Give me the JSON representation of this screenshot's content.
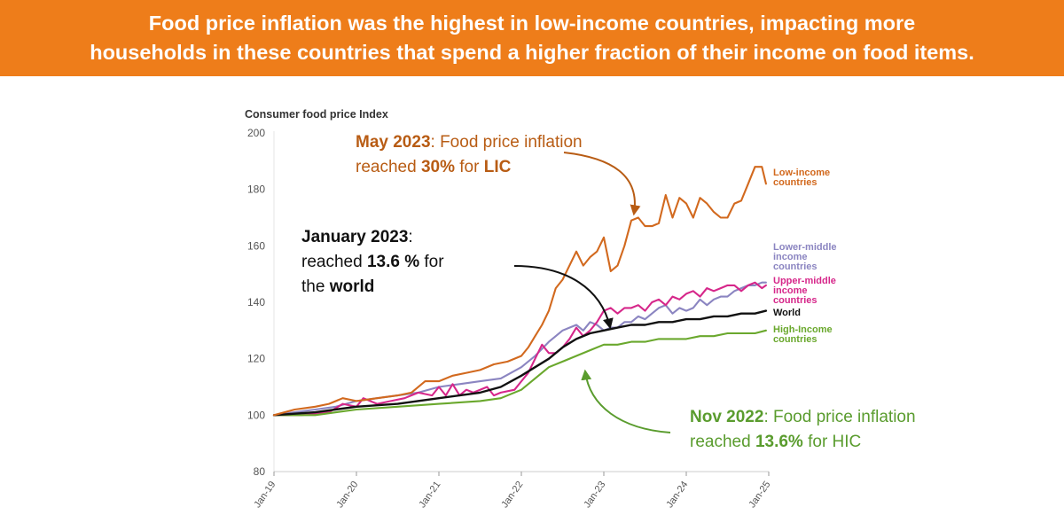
{
  "banner": {
    "line1": "Food price inflation was the highest in low-income countries, impacting more",
    "line2": "households in these countries that spend a higher fraction of their income on food items."
  },
  "colors": {
    "banner": "#ee7d1a",
    "low_income": "#d2691e",
    "lower_middle": "#8b85c1",
    "upper_middle": "#d6278a",
    "world": "#111111",
    "high_income": "#6aa82d",
    "ann_may": "#b85c14",
    "ann_nov": "#5a9c2e"
  },
  "annotations": {
    "may": {
      "date": "May 2023",
      "t1": ": Food price inflation",
      "t2": "reached ",
      "val": "30%",
      "t3": " for ",
      "grp": "LIC"
    },
    "jan": {
      "date": "January 2023",
      "t1": ":",
      "t2": "reached ",
      "val": "13.6 %",
      "t3": " for",
      "t4": "the ",
      "grp": "world"
    },
    "nov": {
      "date": "Nov 2022",
      "t1": ": Food price inflation",
      "t2": "reached ",
      "val": "13.6%",
      "t3": " for HIC"
    }
  },
  "chart_data": {
    "type": "line",
    "ylabel": "Consumer food price Index",
    "ylim": [
      80,
      200
    ],
    "yticks": [
      80,
      100,
      120,
      140,
      160,
      180,
      200
    ],
    "xticks": [
      "Jan-19",
      "Jan-20",
      "Jan-21",
      "Jan-22",
      "Jan-23",
      "Jan-24",
      "Jan-25"
    ],
    "xlim_months": [
      0,
      72
    ],
    "grid": false,
    "series": [
      {
        "key": "low_income",
        "name": "Low-income countries",
        "label_lines": [
          "Low-income",
          "countries"
        ],
        "points": [
          [
            0,
            100
          ],
          [
            3,
            102
          ],
          [
            6,
            103
          ],
          [
            8,
            104
          ],
          [
            10,
            106
          ],
          [
            12,
            105
          ],
          [
            15,
            106
          ],
          [
            18,
            107
          ],
          [
            20,
            108
          ],
          [
            22,
            112
          ],
          [
            24,
            112
          ],
          [
            26,
            114
          ],
          [
            28,
            115
          ],
          [
            30,
            116
          ],
          [
            32,
            118
          ],
          [
            34,
            119
          ],
          [
            36,
            121
          ],
          [
            37,
            124
          ],
          [
            38,
            128
          ],
          [
            39,
            132
          ],
          [
            40,
            137
          ],
          [
            41,
            145
          ],
          [
            42,
            148
          ],
          [
            44,
            158
          ],
          [
            45,
            153
          ],
          [
            46,
            156
          ],
          [
            47,
            158
          ],
          [
            48,
            163
          ],
          [
            49,
            151
          ],
          [
            50,
            153
          ],
          [
            51,
            160
          ],
          [
            52,
            169
          ],
          [
            53,
            170
          ],
          [
            54,
            167
          ],
          [
            55,
            167
          ],
          [
            56,
            168
          ],
          [
            57,
            178
          ],
          [
            58,
            170
          ],
          [
            59,
            177
          ],
          [
            60,
            175
          ],
          [
            61,
            170
          ],
          [
            62,
            177
          ],
          [
            63,
            175
          ],
          [
            64,
            172
          ],
          [
            65,
            170
          ],
          [
            66,
            170
          ],
          [
            67,
            175
          ],
          [
            68,
            176
          ],
          [
            69,
            182
          ],
          [
            70,
            188
          ],
          [
            71,
            188
          ],
          [
            71.6,
            182
          ]
        ]
      },
      {
        "key": "lower_middle",
        "name": "Lower-middle income countries",
        "label_lines": [
          "Lower-middle",
          "income",
          "countries"
        ],
        "points": [
          [
            0,
            100
          ],
          [
            3,
            101
          ],
          [
            6,
            102
          ],
          [
            9,
            103
          ],
          [
            12,
            105
          ],
          [
            15,
            106
          ],
          [
            18,
            107
          ],
          [
            21,
            108
          ],
          [
            24,
            110
          ],
          [
            27,
            111
          ],
          [
            30,
            112
          ],
          [
            33,
            113
          ],
          [
            36,
            117
          ],
          [
            38,
            121
          ],
          [
            40,
            126
          ],
          [
            42,
            130
          ],
          [
            43,
            131
          ],
          [
            44,
            132
          ],
          [
            45,
            130
          ],
          [
            46,
            133
          ],
          [
            47,
            132
          ],
          [
            48,
            130
          ],
          [
            49,
            131
          ],
          [
            50,
            131
          ],
          [
            51,
            133
          ],
          [
            52,
            133
          ],
          [
            53,
            135
          ],
          [
            54,
            134
          ],
          [
            55,
            136
          ],
          [
            56,
            138
          ],
          [
            57,
            139
          ],
          [
            58,
            136
          ],
          [
            59,
            138
          ],
          [
            60,
            137
          ],
          [
            61,
            138
          ],
          [
            62,
            141
          ],
          [
            63,
            139
          ],
          [
            64,
            141
          ],
          [
            65,
            142
          ],
          [
            66,
            142
          ],
          [
            67,
            144
          ],
          [
            68,
            145
          ],
          [
            69,
            146
          ],
          [
            70,
            146
          ],
          [
            71,
            147
          ],
          [
            71.6,
            147
          ]
        ]
      },
      {
        "key": "upper_middle",
        "name": "Upper-middle income countries",
        "label_lines": [
          "Upper-middle",
          "income",
          "countries"
        ],
        "points": [
          [
            0,
            100
          ],
          [
            4,
            100
          ],
          [
            8,
            101
          ],
          [
            10,
            104
          ],
          [
            12,
            103
          ],
          [
            13,
            106
          ],
          [
            15,
            104
          ],
          [
            17,
            105
          ],
          [
            19,
            106
          ],
          [
            21,
            108
          ],
          [
            23,
            107
          ],
          [
            24,
            110
          ],
          [
            25,
            107
          ],
          [
            26,
            111
          ],
          [
            27,
            107
          ],
          [
            28,
            109
          ],
          [
            29,
            108
          ],
          [
            31,
            110
          ],
          [
            32,
            107
          ],
          [
            33,
            108
          ],
          [
            35,
            109
          ],
          [
            36,
            112
          ],
          [
            37,
            115
          ],
          [
            38,
            120
          ],
          [
            39,
            125
          ],
          [
            40,
            122
          ],
          [
            41,
            122
          ],
          [
            42,
            124
          ],
          [
            43,
            127
          ],
          [
            44,
            131
          ],
          [
            45,
            128
          ],
          [
            46,
            130
          ],
          [
            47,
            133
          ],
          [
            48,
            137
          ],
          [
            49,
            138
          ],
          [
            50,
            136
          ],
          [
            51,
            138
          ],
          [
            52,
            138
          ],
          [
            53,
            139
          ],
          [
            54,
            137
          ],
          [
            55,
            140
          ],
          [
            56,
            141
          ],
          [
            57,
            139
          ],
          [
            58,
            142
          ],
          [
            59,
            141
          ],
          [
            60,
            143
          ],
          [
            61,
            144
          ],
          [
            62,
            142
          ],
          [
            63,
            145
          ],
          [
            64,
            144
          ],
          [
            65,
            145
          ],
          [
            66,
            146
          ],
          [
            67,
            146
          ],
          [
            68,
            144
          ],
          [
            69,
            146
          ],
          [
            70,
            147
          ],
          [
            71,
            145
          ],
          [
            71.6,
            146
          ]
        ]
      },
      {
        "key": "world",
        "name": "World",
        "label_lines": [
          "World"
        ],
        "points": [
          [
            0,
            100
          ],
          [
            6,
            101
          ],
          [
            12,
            103
          ],
          [
            18,
            104
          ],
          [
            24,
            106
          ],
          [
            30,
            108
          ],
          [
            33,
            110
          ],
          [
            36,
            114
          ],
          [
            38,
            117
          ],
          [
            40,
            120
          ],
          [
            42,
            124
          ],
          [
            44,
            127
          ],
          [
            46,
            129
          ],
          [
            48,
            130
          ],
          [
            50,
            131
          ],
          [
            52,
            132
          ],
          [
            54,
            132
          ],
          [
            56,
            133
          ],
          [
            58,
            133
          ],
          [
            60,
            134
          ],
          [
            62,
            134
          ],
          [
            64,
            135
          ],
          [
            66,
            135
          ],
          [
            68,
            136
          ],
          [
            70,
            136
          ],
          [
            71.6,
            137
          ]
        ]
      },
      {
        "key": "high_income",
        "name": "High-Income countries",
        "label_lines": [
          "High-Income",
          "countries"
        ],
        "points": [
          [
            0,
            100
          ],
          [
            6,
            100
          ],
          [
            12,
            102
          ],
          [
            18,
            103
          ],
          [
            24,
            104
          ],
          [
            30,
            105
          ],
          [
            33,
            106
          ],
          [
            36,
            109
          ],
          [
            38,
            113
          ],
          [
            40,
            117
          ],
          [
            42,
            119
          ],
          [
            44,
            121
          ],
          [
            46,
            123
          ],
          [
            48,
            125
          ],
          [
            50,
            125
          ],
          [
            52,
            126
          ],
          [
            54,
            126
          ],
          [
            56,
            127
          ],
          [
            58,
            127
          ],
          [
            60,
            127
          ],
          [
            62,
            128
          ],
          [
            64,
            128
          ],
          [
            66,
            129
          ],
          [
            68,
            129
          ],
          [
            70,
            129
          ],
          [
            71.6,
            130
          ]
        ]
      }
    ]
  }
}
